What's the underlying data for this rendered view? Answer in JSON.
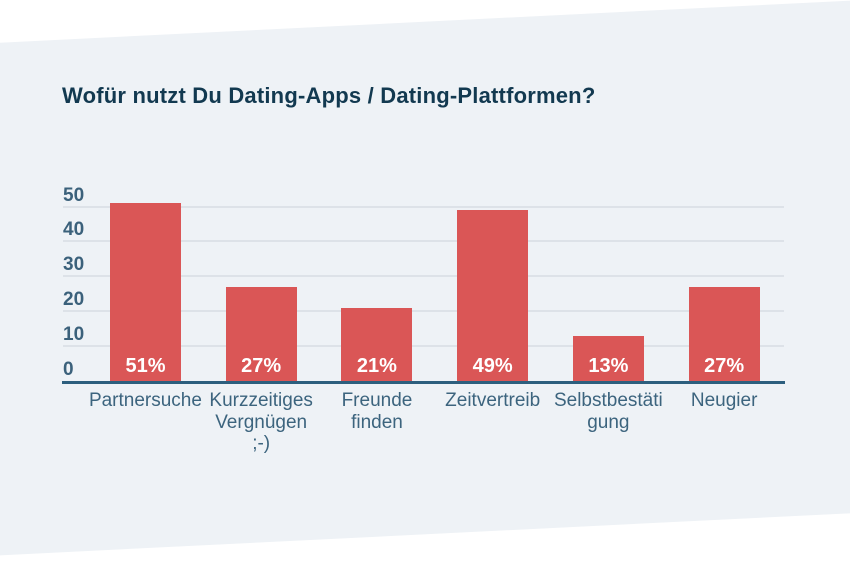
{
  "chart_data": {
    "type": "bar",
    "title": "Wofür nutzt Du Dating-Apps / Dating-Plattformen?",
    "categories": [
      "Partnersuche",
      "Kurzzeitiges Vergnügen ;-)",
      "Freunde finden",
      "Zeitvertreib",
      "Selbstbestätigung",
      "Neugier"
    ],
    "category_label_lines": [
      [
        "Partnersuche"
      ],
      [
        "Kurzzeitiges",
        "Vergnügen",
        ";-)"
      ],
      [
        "Freunde",
        "finden"
      ],
      [
        "Zeitvertreib"
      ],
      [
        "Selbstbestäti",
        "gung"
      ],
      [
        "Neugier"
      ]
    ],
    "values": [
      51,
      27,
      21,
      49,
      13,
      27
    ],
    "value_labels": [
      "51%",
      "27%",
      "21%",
      "49%",
      "13%",
      "27%"
    ],
    "y_ticks": [
      0,
      10,
      20,
      30,
      40,
      50
    ],
    "ylim": [
      0,
      55
    ],
    "xlabel": "",
    "ylabel": "",
    "grid": true,
    "legend": false,
    "colors": {
      "bar": "#da5656",
      "value_label": "#ffffff",
      "axis_line": "#2d5f7e",
      "gridline": "#dde2e8",
      "tick_label": "#3b617b",
      "category_label": "#3c647e",
      "title": "#123950",
      "panel_background": "#eef2f6",
      "page_background": "#ffffff"
    }
  }
}
